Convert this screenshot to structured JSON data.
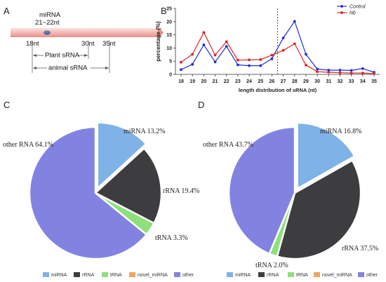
{
  "panels": {
    "A": {
      "letter": "A",
      "mirna_label": "miRNA",
      "mirna_range": "21~22nt",
      "mark_18": "18nt",
      "mark_30": "30nt",
      "mark_35": "35nt",
      "plant_label": "Plant sRNA",
      "animal_label": "animal sRNA"
    },
    "B": {
      "letter": "B"
    },
    "C": {
      "letter": "C"
    },
    "D": {
      "letter": "D"
    }
  },
  "legend_items": [
    "miRNA",
    "rRNA",
    "tRNA",
    "novel_miRNA",
    "other"
  ],
  "colors": {
    "miRNA": "#7fb2e6",
    "rRNA": "#3d3d3f",
    "tRNA": "#8de07a",
    "novel_miRNA": "#f4a35c",
    "other": "#8283e0",
    "control": "#1f2ed6",
    "nb": "#e02222"
  },
  "chart_data": [
    {
      "type": "line",
      "panel": "B",
      "title": "",
      "xlabel": "length distribution of sRNA (nt)",
      "ylabel": "percentage (%)",
      "ylim": [
        0,
        25
      ],
      "yticks": [
        0,
        5,
        10,
        15,
        20,
        25
      ],
      "x": [
        18,
        19,
        20,
        21,
        22,
        23,
        24,
        25,
        26,
        27,
        28,
        29,
        30,
        31,
        32,
        33,
        34,
        35
      ],
      "series": [
        {
          "name": "Control",
          "values": [
            1.8,
            3.8,
            11.2,
            4.7,
            10.6,
            3.6,
            3.3,
            3.3,
            5.9,
            13.8,
            20.1,
            7.6,
            2.0,
            1.6,
            1.6,
            1.5,
            2.2,
            0.8
          ]
        },
        {
          "name": "Nb",
          "values": [
            4.6,
            7.6,
            15.9,
            7.3,
            12.4,
            5.4,
            5.5,
            5.6,
            7.3,
            9.1,
            11.6,
            3.5,
            1.0,
            0.8,
            0.6,
            0.5,
            0.5,
            0.3
          ]
        }
      ],
      "vline_x": 26.5,
      "legend": "top-right",
      "grid": false
    },
    {
      "type": "pie",
      "panel": "C",
      "slices": [
        {
          "name": "miRNA",
          "value": 13.2,
          "label": "miRNA 13.2%",
          "exploded": true
        },
        {
          "name": "rRNA",
          "value": 19.4,
          "label": "rRNA 19.4%",
          "exploded": false
        },
        {
          "name": "tRNA",
          "value": 3.3,
          "label": "tRNA 3.3%",
          "exploded": false
        },
        {
          "name": "other",
          "value": 64.1,
          "label": "other RNA 64.1%",
          "exploded": false
        }
      ],
      "legend": "bottom"
    },
    {
      "type": "pie",
      "panel": "D",
      "slices": [
        {
          "name": "miRNA",
          "value": 16.8,
          "label": "miRNA 16.8%",
          "exploded": true
        },
        {
          "name": "rRNA",
          "value": 37.5,
          "label": "rRNA 37.5%",
          "exploded": false
        },
        {
          "name": "tRNA",
          "value": 2.0,
          "label": "tRNA 2.0%",
          "exploded": false
        },
        {
          "name": "other",
          "value": 43.7,
          "label": "other RNA 43.7%",
          "exploded": false
        }
      ],
      "legend": "bottom"
    }
  ]
}
